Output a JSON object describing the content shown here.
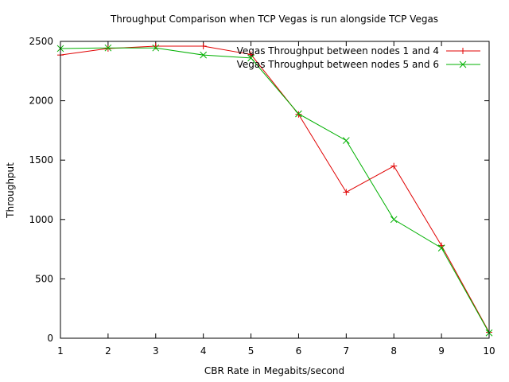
{
  "chart_data": {
    "type": "line",
    "title": "Throughput Comparison when TCP Vegas is run alongside TCP Vegas",
    "xlabel": "CBR Rate in Megabits/second",
    "ylabel": "Throughput",
    "xlim": [
      1,
      10
    ],
    "ylim": [
      0,
      2500
    ],
    "x_ticks": [
      1,
      2,
      3,
      4,
      5,
      6,
      7,
      8,
      9,
      10
    ],
    "y_ticks": [
      0,
      500,
      1000,
      1500,
      2000,
      2500
    ],
    "grid": false,
    "legend_position": "top-right",
    "x": [
      1,
      2,
      3,
      4,
      5,
      6,
      7,
      8,
      9,
      10
    ],
    "series": [
      {
        "name": "Vegas Throughput between nodes 1 and 4",
        "color": "#e00000",
        "marker": "plus",
        "values": [
          2385,
          2440,
          2460,
          2460,
          2390,
          1885,
          1230,
          1450,
          780,
          50
        ]
      },
      {
        "name": "Vegas Throughput between nodes 5 and 6",
        "color": "#00b000",
        "marker": "cross",
        "values": [
          2440,
          2445,
          2445,
          2385,
          2360,
          1890,
          1665,
          1000,
          760,
          45
        ]
      }
    ]
  }
}
